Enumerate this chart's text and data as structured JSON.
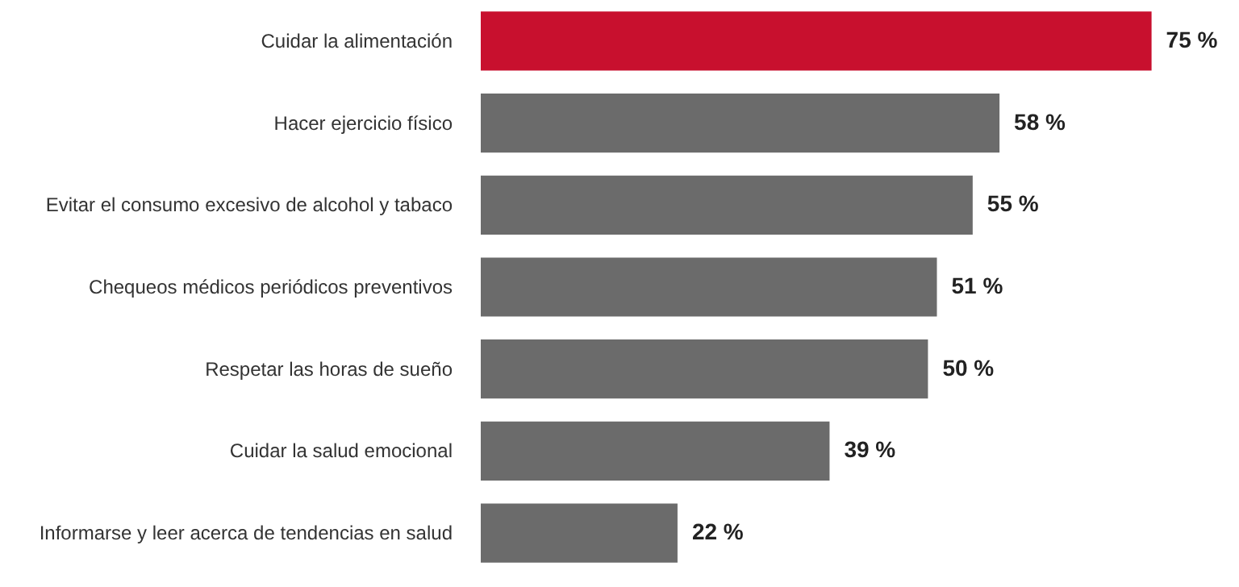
{
  "chart_data": {
    "type": "bar",
    "orientation": "horizontal",
    "categories": [
      "Cuidar la alimentación",
      "Hacer ejercicio físico",
      "Evitar el consumo excesivo de alcohol y tabaco",
      "Chequeos médicos periódicos preventivos",
      "Respetar las horas de sueño",
      "Cuidar la salud emocional",
      "Informarse y leer acerca de tendencias en salud"
    ],
    "values": [
      75,
      58,
      55,
      51,
      50,
      39,
      22
    ],
    "colors": [
      "#c8102e",
      "#6b6b6b",
      "#6b6b6b",
      "#6b6b6b",
      "#6b6b6b",
      "#6b6b6b",
      "#6b6b6b"
    ],
    "value_labels": [
      "75 %",
      "58 %",
      "55 %",
      "51 %",
      "50 %",
      "39 %",
      "22 %"
    ]
  }
}
